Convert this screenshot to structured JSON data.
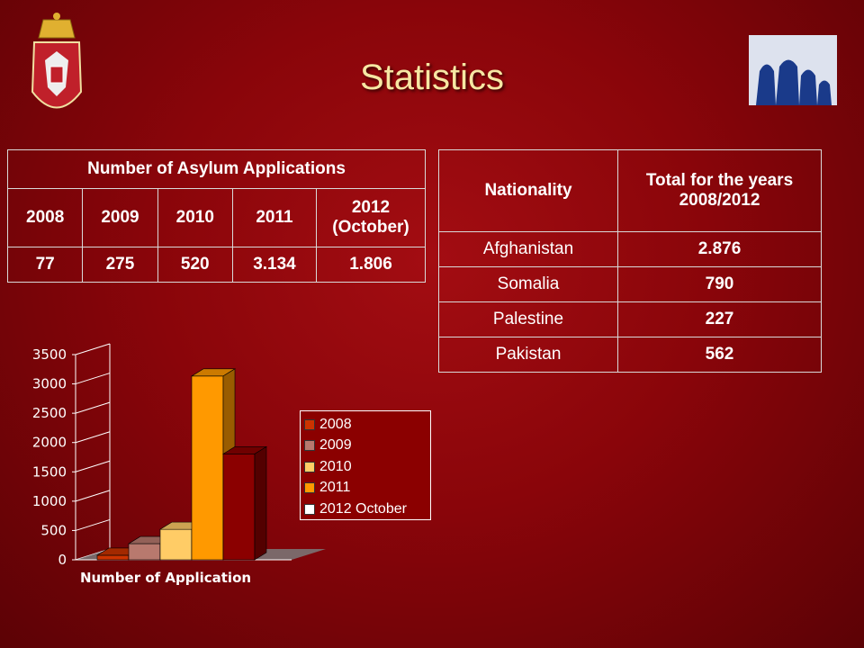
{
  "title": "Statistics",
  "colors": {
    "accent": "#f6e7a3",
    "background": "#8a050a"
  },
  "table_applications": {
    "header": "Number of Asylum Applications",
    "years": [
      "2008",
      "2009",
      "2010",
      "2011",
      "2012 (October)"
    ],
    "values": [
      "77",
      "275",
      "520",
      "3.134",
      "1.806"
    ]
  },
  "table_nationality": {
    "headers": [
      "Nationality",
      "Total for the years 2008/2012"
    ],
    "rows": [
      {
        "nationality": "Afghanistan",
        "total": "2.876"
      },
      {
        "nationality": "Somalia",
        "total": "790"
      },
      {
        "nationality": "Palestine",
        "total": "227"
      },
      {
        "nationality": "Pakistan",
        "total": "562"
      }
    ]
  },
  "chart_data": {
    "type": "bar",
    "xlabel": "Number of Application",
    "ylabel": "",
    "ylim": [
      0,
      3500
    ],
    "yticks": [
      "0",
      "500",
      "1000",
      "1500",
      "2000",
      "2500",
      "3000",
      "3500"
    ],
    "legend_position": "right",
    "series": [
      {
        "name": "2008",
        "value": 77,
        "color": "#cc3300"
      },
      {
        "name": "2009",
        "value": 275,
        "color": "#b8796e"
      },
      {
        "name": "2010",
        "value": 520,
        "color": "#ffcc66"
      },
      {
        "name": "2011",
        "value": 3134,
        "color": "#ff9900"
      },
      {
        "name": "2012 October",
        "value": 1806,
        "color": "#8b0000"
      }
    ]
  }
}
